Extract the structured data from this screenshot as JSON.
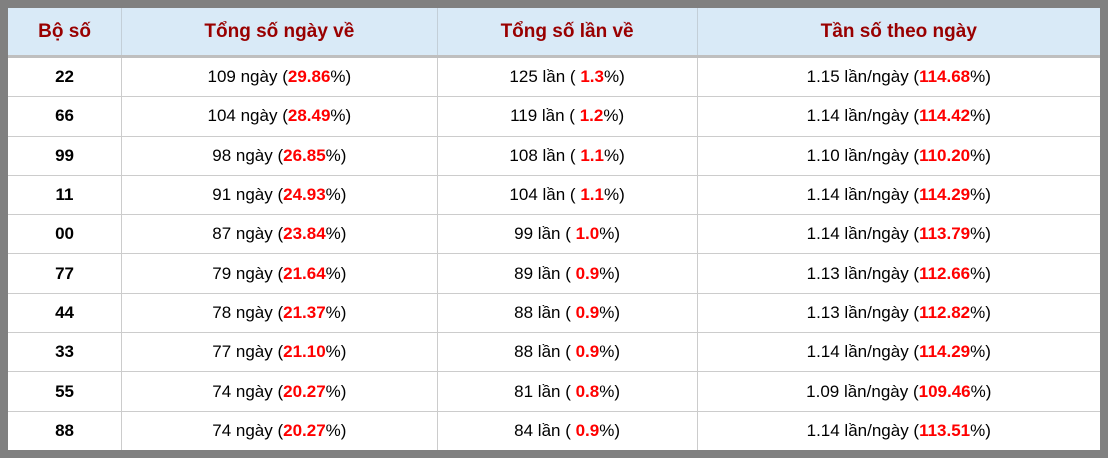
{
  "colors": {
    "frame": "#808080",
    "header_bg": "#d9eaf7",
    "header_text": "#990000",
    "highlight": "#ff0000",
    "row_divider": "#cccccc"
  },
  "table": {
    "columns": [
      {
        "label": "Bộ số"
      },
      {
        "label": "Tổng số ngày về"
      },
      {
        "label": "Tổng số lần về"
      },
      {
        "label": "Tần số theo ngày"
      }
    ],
    "rows": [
      {
        "pair": "22",
        "days_prefix": "109 ngày (",
        "days_value": "29.86",
        "days_suffix": "%)",
        "times_prefix": "125 lần ( ",
        "times_value": "1.3",
        "times_suffix": "%)",
        "freq_prefix": "1.15 lần/ngày (",
        "freq_value": "114.68",
        "freq_suffix": "%)"
      },
      {
        "pair": "66",
        "days_prefix": "104 ngày (",
        "days_value": "28.49",
        "days_suffix": "%)",
        "times_prefix": "119 lần ( ",
        "times_value": "1.2",
        "times_suffix": "%)",
        "freq_prefix": "1.14 lần/ngày (",
        "freq_value": "114.42",
        "freq_suffix": "%)"
      },
      {
        "pair": "99",
        "days_prefix": "98 ngày (",
        "days_value": "26.85",
        "days_suffix": "%)",
        "times_prefix": "108 lần ( ",
        "times_value": "1.1",
        "times_suffix": "%)",
        "freq_prefix": "1.10 lần/ngày (",
        "freq_value": "110.20",
        "freq_suffix": "%)"
      },
      {
        "pair": "11",
        "days_prefix": "91 ngày (",
        "days_value": "24.93",
        "days_suffix": "%)",
        "times_prefix": "104 lần ( ",
        "times_value": "1.1",
        "times_suffix": "%)",
        "freq_prefix": "1.14 lần/ngày (",
        "freq_value": "114.29",
        "freq_suffix": "%)"
      },
      {
        "pair": "00",
        "days_prefix": "87 ngày (",
        "days_value": "23.84",
        "days_suffix": "%)",
        "times_prefix": "99 lần ( ",
        "times_value": "1.0",
        "times_suffix": "%)",
        "freq_prefix": "1.14 lần/ngày (",
        "freq_value": "113.79",
        "freq_suffix": "%)"
      },
      {
        "pair": "77",
        "days_prefix": "79 ngày (",
        "days_value": "21.64",
        "days_suffix": "%)",
        "times_prefix": "89 lần ( ",
        "times_value": "0.9",
        "times_suffix": "%)",
        "freq_prefix": "1.13 lần/ngày (",
        "freq_value": "112.66",
        "freq_suffix": "%)"
      },
      {
        "pair": "44",
        "days_prefix": "78 ngày (",
        "days_value": "21.37",
        "days_suffix": "%)",
        "times_prefix": "88 lần ( ",
        "times_value": "0.9",
        "times_suffix": "%)",
        "freq_prefix": "1.13 lần/ngày (",
        "freq_value": "112.82",
        "freq_suffix": "%)"
      },
      {
        "pair": "33",
        "days_prefix": "77 ngày (",
        "days_value": "21.10",
        "days_suffix": "%)",
        "times_prefix": "88 lần ( ",
        "times_value": "0.9",
        "times_suffix": "%)",
        "freq_prefix": "1.14 lần/ngày (",
        "freq_value": "114.29",
        "freq_suffix": "%)"
      },
      {
        "pair": "55",
        "days_prefix": "74 ngày (",
        "days_value": "20.27",
        "days_suffix": "%)",
        "times_prefix": "81 lần ( ",
        "times_value": "0.8",
        "times_suffix": "%)",
        "freq_prefix": "1.09 lần/ngày (",
        "freq_value": "109.46",
        "freq_suffix": "%)"
      },
      {
        "pair": "88",
        "days_prefix": "74 ngày (",
        "days_value": "20.27",
        "days_suffix": "%)",
        "times_prefix": "84 lần ( ",
        "times_value": "0.9",
        "times_suffix": "%)",
        "freq_prefix": "1.14 lần/ngày (",
        "freq_value": "113.51",
        "freq_suffix": "%)"
      }
    ]
  }
}
